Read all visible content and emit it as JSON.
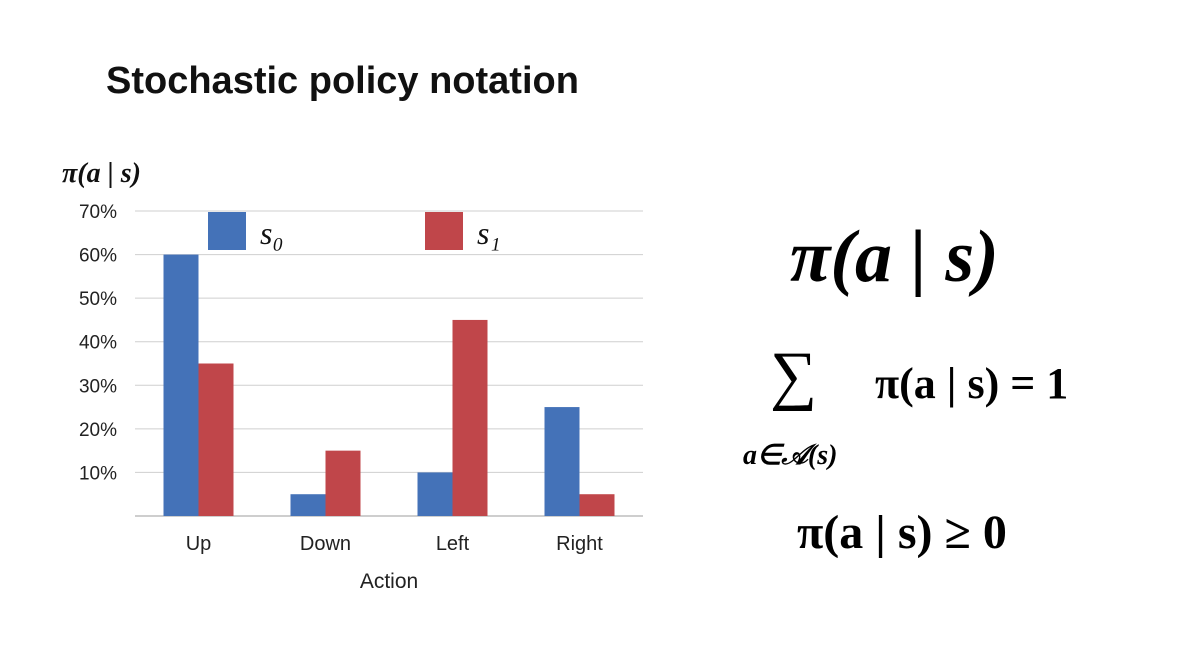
{
  "title": "Stochastic policy notation",
  "chart_data": {
    "type": "bar",
    "y_axis_title": "π(a | s)",
    "xlabel": "Action",
    "categories": [
      "Up",
      "Down",
      "Left",
      "Right"
    ],
    "series": [
      {
        "name": "s₀",
        "values": [
          60,
          5,
          10,
          25
        ],
        "color": "#4472b8"
      },
      {
        "name": "s₁",
        "values": [
          35,
          15,
          45,
          5
        ],
        "color": "#c0464a"
      }
    ],
    "ylim": [
      0,
      70
    ],
    "yticks": [
      10,
      20,
      30,
      40,
      50,
      60,
      70
    ],
    "ytick_labels": [
      "10%",
      "20%",
      "30%",
      "40%",
      "50%",
      "60%",
      "70%"
    ],
    "grid": true,
    "legend": "top"
  },
  "equations": {
    "policy": "π(a | s)",
    "sum_symbol": "∑",
    "sum_body": "π(a | s) = 1",
    "sum_subscript": "a∈𝒜(s)",
    "nonnegative": "π(a | s) ≥ 0"
  }
}
